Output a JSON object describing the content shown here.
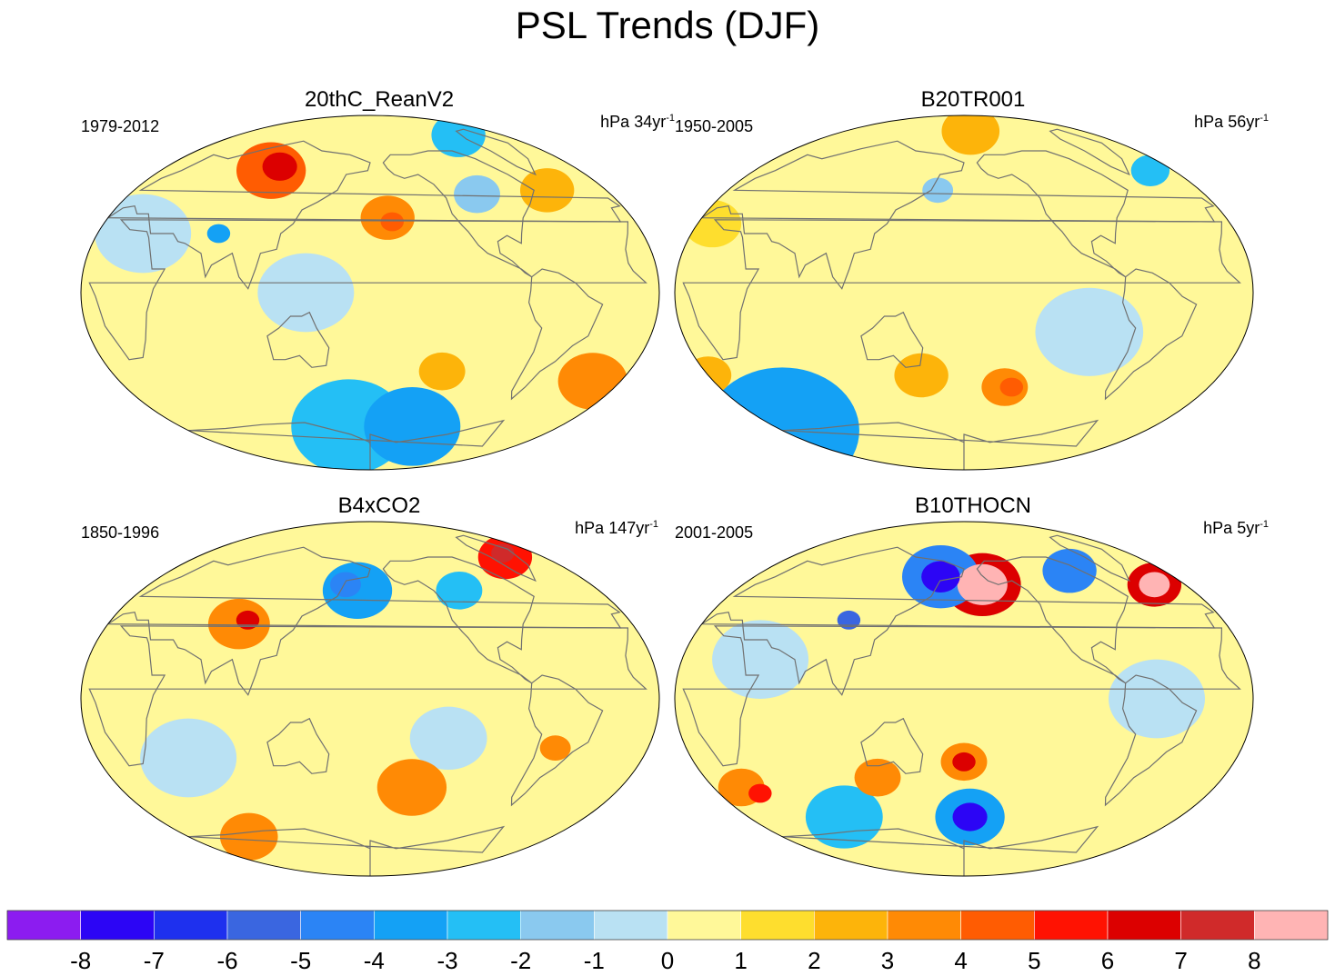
{
  "title": "PSL Trends (DJF)",
  "panels": [
    {
      "name": "20thC_ReanV2",
      "period": "1979-2012",
      "units_prefix": "hPa",
      "units_value": "34yr",
      "units_exp": "-1",
      "blobs": [
        {
          "lon": 95,
          "lat": 62,
          "r": 18,
          "v": 4
        },
        {
          "lon": 100,
          "lat": 64,
          "r": 9,
          "v": 6
        },
        {
          "lon": -168,
          "lat": 38,
          "r": 14,
          "v": 3
        },
        {
          "lon": -165,
          "lat": 36,
          "r": 6,
          "v": 4
        },
        {
          "lon": -45,
          "lat": 52,
          "r": 14,
          "v": 2
        },
        {
          "lon": -20,
          "lat": -45,
          "r": 18,
          "v": 3
        },
        {
          "lon": -130,
          "lat": -40,
          "r": 12,
          "v": 2
        },
        {
          "lon": -100,
          "lat": 50,
          "r": 12,
          "v": -2
        },
        {
          "lon": 30,
          "lat": 30,
          "r": 25,
          "v": -1
        },
        {
          "lon": -140,
          "lat": -68,
          "r": 25,
          "v": -4
        },
        {
          "lon": 160,
          "lat": -68,
          "r": 30,
          "v": -3
        },
        {
          "lon": -60,
          "lat": 80,
          "r": 14,
          "v": -3
        },
        {
          "lon": 80,
          "lat": 30,
          "r": 6,
          "v": -4
        },
        {
          "lon": 140,
          "lat": 0,
          "r": 25,
          "v": -1
        }
      ]
    },
    {
      "name": "B20TR001",
      "period": "1950-2005",
      "units_prefix": "hPa",
      "units_value": "56yr",
      "units_exp": "-1",
      "blobs": [
        {
          "lon": -150,
          "lat": -48,
          "r": 12,
          "v": 3
        },
        {
          "lon": -145,
          "lat": -48,
          "r": 6,
          "v": 4
        },
        {
          "lon": 0,
          "lat": -42,
          "r": 12,
          "v": 2
        },
        {
          "lon": 150,
          "lat": -42,
          "r": 14,
          "v": 2
        },
        {
          "lon": -170,
          "lat": 82,
          "r": 15,
          "v": 2
        },
        {
          "lon": 10,
          "lat": 35,
          "r": 15,
          "v": 1
        },
        {
          "lon": -20,
          "lat": 62,
          "r": 10,
          "v": -3
        },
        {
          "lon": 160,
          "lat": 52,
          "r": 8,
          "v": -2
        },
        {
          "lon": -100,
          "lat": -20,
          "r": 28,
          "v": -1
        },
        {
          "lon": 0,
          "lat": -70,
          "r": 40,
          "v": -4
        }
      ]
    },
    {
      "name": "B4xCO2",
      "period": "1850-1996",
      "units_prefix": "hPa",
      "units_value": "147yr",
      "units_exp": "-1",
      "blobs": [
        {
          "lon": -40,
          "lat": 72,
          "r": 14,
          "v": 5
        },
        {
          "lon": -35,
          "lat": 74,
          "r": 6,
          "v": 7
        },
        {
          "lon": 90,
          "lat": 38,
          "r": 16,
          "v": 3
        },
        {
          "lon": 95,
          "lat": 40,
          "r": 6,
          "v": 6
        },
        {
          "lon": -150,
          "lat": -45,
          "r": 18,
          "v": 3
        },
        {
          "lon": -60,
          "lat": -25,
          "r": 8,
          "v": 3
        },
        {
          "lon": 170,
          "lat": 55,
          "r": 18,
          "v": -4
        },
        {
          "lon": 160,
          "lat": 58,
          "r": 8,
          "v": -5
        },
        {
          "lon": -110,
          "lat": 55,
          "r": 12,
          "v": -3
        },
        {
          "lon": -130,
          "lat": -20,
          "r": 20,
          "v": -1
        },
        {
          "lon": 60,
          "lat": -30,
          "r": 25,
          "v": -1
        },
        {
          "lon": 60,
          "lat": -70,
          "r": 15,
          "v": 3
        }
      ]
    },
    {
      "name": "B10THOCN",
      "period": "2001-2005",
      "units_prefix": "hPa",
      "units_value": "5yr",
      "units_exp": "-1",
      "blobs": [
        {
          "lon": -165,
          "lat": 58,
          "r": 20,
          "v": 6
        },
        {
          "lon": -165,
          "lat": 58,
          "r": 13,
          "v": 9
        },
        {
          "lon": -25,
          "lat": 58,
          "r": 14,
          "v": 6
        },
        {
          "lon": -25,
          "lat": 58,
          "r": 8,
          "v": 9
        },
        {
          "lon": 160,
          "lat": 62,
          "r": 20,
          "v": -5
        },
        {
          "lon": 160,
          "lat": 62,
          "r": 10,
          "v": -8
        },
        {
          "lon": -85,
          "lat": 65,
          "r": 14,
          "v": -5
        },
        {
          "lon": 100,
          "lat": 40,
          "r": 6,
          "v": -6
        },
        {
          "lon": -180,
          "lat": -32,
          "r": 12,
          "v": 3
        },
        {
          "lon": -180,
          "lat": -32,
          "r": 6,
          "v": 6
        },
        {
          "lon": -175,
          "lat": -60,
          "r": 18,
          "v": -4
        },
        {
          "lon": -175,
          "lat": -60,
          "r": 9,
          "v": -8
        },
        {
          "lon": 20,
          "lat": -45,
          "r": 12,
          "v": 3
        },
        {
          "lon": 30,
          "lat": -48,
          "r": 6,
          "v": 5
        },
        {
          "lon": 120,
          "lat": -40,
          "r": 12,
          "v": 3
        },
        {
          "lon": 80,
          "lat": -60,
          "r": 20,
          "v": -3
        },
        {
          "lon": 50,
          "lat": 20,
          "r": 25,
          "v": -1
        },
        {
          "lon": -60,
          "lat": 0,
          "r": 25,
          "v": -1
        }
      ]
    }
  ],
  "chart_data": {
    "type": "heatmap",
    "title": "PSL Trends (DJF)",
    "panels": [
      "20thC_ReanV2",
      "B20TR001",
      "B4xCO2",
      "B10THOCN"
    ],
    "periods": [
      "1979-2012",
      "1950-2005",
      "1850-1996",
      "2001-2005"
    ],
    "units": [
      "hPa 34yr-1",
      "hPa 56yr-1",
      "hPa 147yr-1",
      "hPa 5yr-1"
    ],
    "colorbar_levels": [
      -8,
      -7,
      -6,
      -5,
      -4,
      -3,
      -2,
      -1,
      0,
      1,
      2,
      3,
      4,
      5,
      6,
      7,
      8
    ],
    "colorbar_labels": [
      "-8",
      "-7",
      "-6",
      "-5",
      "-4",
      "-3",
      "-2",
      "-1",
      "0",
      "1",
      "2",
      "3",
      "4",
      "5",
      "6",
      "7",
      "8"
    ],
    "colorbar_colors": [
      "#8c1cf0",
      "#2c05f5",
      "#1e30ee",
      "#3a66e0",
      "#2b84f5",
      "#14a1f5",
      "#24bff5",
      "#8ac9ef",
      "#b9e1f3",
      "#fff899",
      "#fede2e",
      "#fdb40a",
      "#ff8a05",
      "#ff5c02",
      "#ff1202",
      "#dc0000",
      "#d02a2a",
      "#ffb4b4"
    ]
  }
}
